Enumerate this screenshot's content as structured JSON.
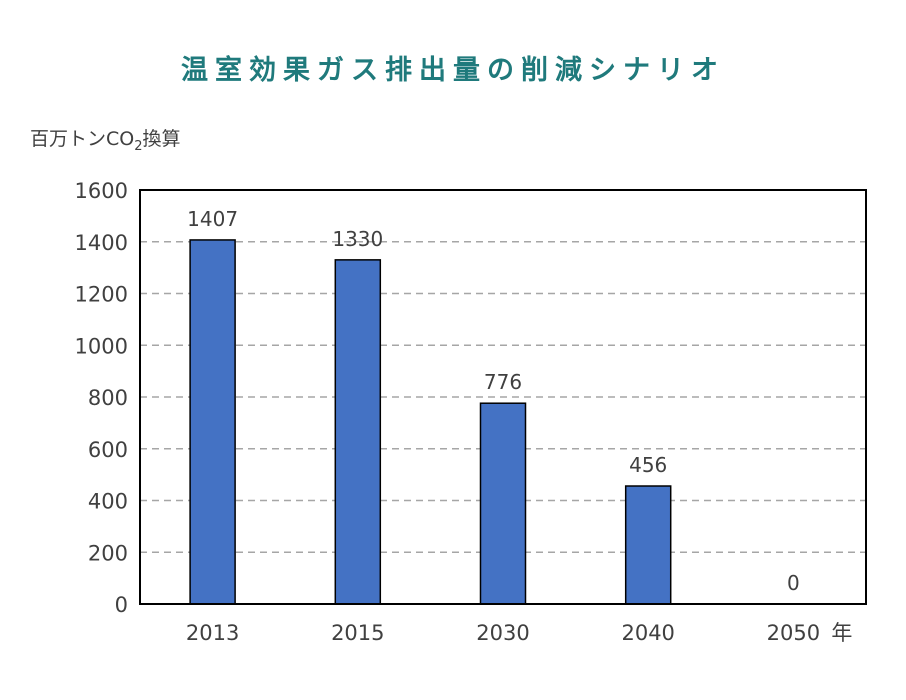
{
  "chart_data": {
    "type": "bar",
    "title": "温室効果ガス排出量の削減シナリオ",
    "ylabel": {
      "main": "百万トンCO",
      "subscript": "2",
      "suffix": "換算"
    },
    "xlabel": "",
    "x_unit": "年",
    "categories": [
      "2013",
      "2015",
      "2030",
      "2040",
      "2050"
    ],
    "values": [
      1407,
      1330,
      776,
      456,
      0
    ],
    "data_labels": [
      "1407",
      "1330",
      "776",
      "456",
      "0"
    ],
    "ylim": [
      0,
      1600
    ],
    "yticks": [
      0,
      200,
      400,
      600,
      800,
      1000,
      1200,
      1400,
      1600
    ],
    "grid": true,
    "grid_style": "dashed",
    "legend": "none",
    "colors": {
      "bar_fill": "#4472c4",
      "bar_stroke": "#000000",
      "title": "#1f7a7c",
      "gridline": "#a6a6a6",
      "frame": "#000000",
      "text": "#404040"
    }
  }
}
